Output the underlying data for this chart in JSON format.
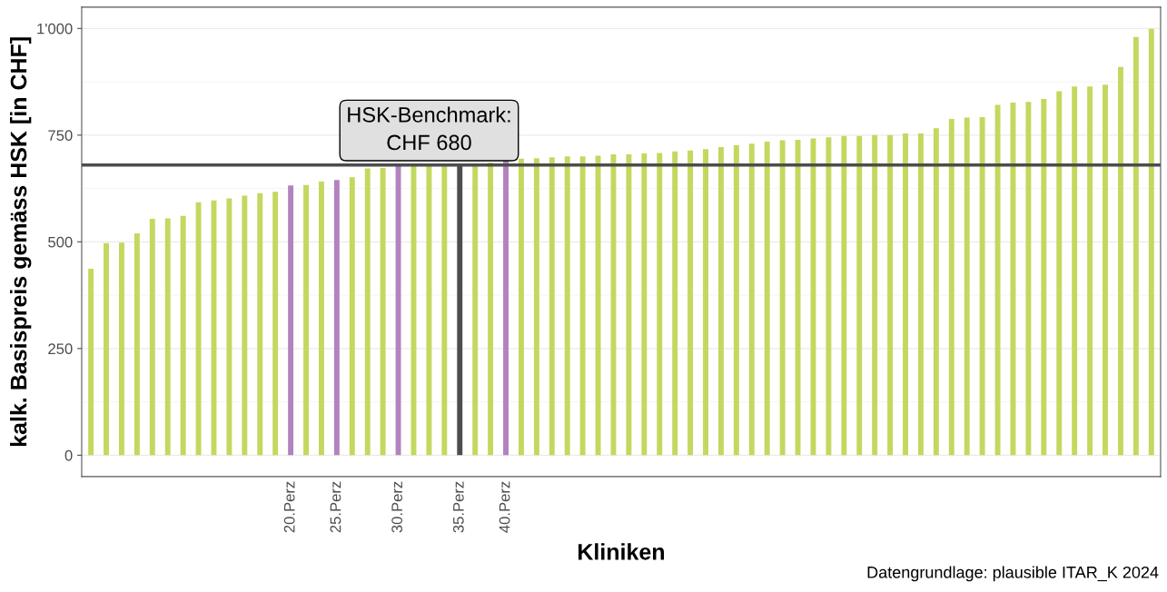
{
  "chart_data": {
    "type": "bar",
    "xlabel": "Kliniken",
    "ylabel": "kalk. Basispreis gemäss HSK [in CHF]",
    "categories": [
      null,
      null,
      null,
      null,
      null,
      null,
      null,
      null,
      null,
      null,
      null,
      null,
      null,
      "20.Perz",
      null,
      null,
      "25.Perz",
      null,
      null,
      null,
      "30.Perz",
      null,
      null,
      null,
      "35.Perz",
      null,
      null,
      "40.Perz",
      null,
      null,
      null,
      null,
      null,
      null,
      null,
      null,
      null,
      null,
      null,
      null,
      null,
      null,
      null,
      null,
      null,
      null,
      null,
      null,
      null,
      null,
      null,
      null,
      null,
      null,
      null,
      null,
      null,
      null,
      null,
      null,
      null,
      null,
      null,
      null,
      null,
      null,
      null,
      null,
      null,
      null
    ],
    "values": [
      437,
      497,
      498,
      520,
      554,
      555,
      561,
      593,
      597,
      602,
      608,
      614,
      617,
      632,
      633,
      641,
      645,
      651,
      672,
      673,
      678,
      679,
      680,
      680,
      680,
      681,
      686,
      691,
      695,
      696,
      698,
      700,
      700,
      702,
      705,
      705,
      707,
      708,
      712,
      714,
      717,
      722,
      726,
      730,
      735,
      738,
      739,
      742,
      745,
      748,
      748,
      750,
      750,
      754,
      754,
      766,
      788,
      791,
      792,
      821,
      826,
      828,
      835,
      853,
      864,
      864,
      868,
      910,
      980,
      999
    ],
    "colors": [
      "#c3d85e",
      "#c3d85e",
      "#c3d85e",
      "#c3d85e",
      "#c3d85e",
      "#c3d85e",
      "#c3d85e",
      "#c3d85e",
      "#c3d85e",
      "#c3d85e",
      "#c3d85e",
      "#c3d85e",
      "#c3d85e",
      "#b283be",
      "#c3d85e",
      "#c3d85e",
      "#b283be",
      "#c3d85e",
      "#c3d85e",
      "#c3d85e",
      "#b283be",
      "#c3d85e",
      "#c3d85e",
      "#c3d85e",
      "#4d4d4d",
      "#c3d85e",
      "#c3d85e",
      "#b283be",
      "#c3d85e",
      "#c3d85e",
      "#c3d85e",
      "#c3d85e",
      "#c3d85e",
      "#c3d85e",
      "#c3d85e",
      "#c3d85e",
      "#c3d85e",
      "#c3d85e",
      "#c3d85e",
      "#c3d85e",
      "#c3d85e",
      "#c3d85e",
      "#c3d85e",
      "#c3d85e",
      "#c3d85e",
      "#c3d85e",
      "#c3d85e",
      "#c3d85e",
      "#c3d85e",
      "#c3d85e",
      "#c3d85e",
      "#c3d85e",
      "#c3d85e",
      "#c3d85e",
      "#c3d85e",
      "#c3d85e",
      "#c3d85e",
      "#c3d85e",
      "#c3d85e",
      "#c3d85e",
      "#c3d85e",
      "#c3d85e",
      "#c3d85e",
      "#c3d85e",
      "#c3d85e",
      "#c3d85e",
      "#c3d85e",
      "#c3d85e",
      "#c3d85e",
      "#c3d85e"
    ],
    "ylim": [
      -50,
      1050
    ],
    "yticks": [
      0,
      250,
      500,
      {
        "value": 750,
        "label": "750"
      },
      {
        "value": 1000,
        "label": "1'000"
      }
    ],
    "grid": "y",
    "ref_lines": [
      {
        "axis": "y",
        "value": 680,
        "label": "HSK-Benchmark:\nCHF 680",
        "color": "#4d4d4d"
      }
    ],
    "annotations": [
      "Datengrundlage: plausible ITAR_K 2024"
    ]
  }
}
